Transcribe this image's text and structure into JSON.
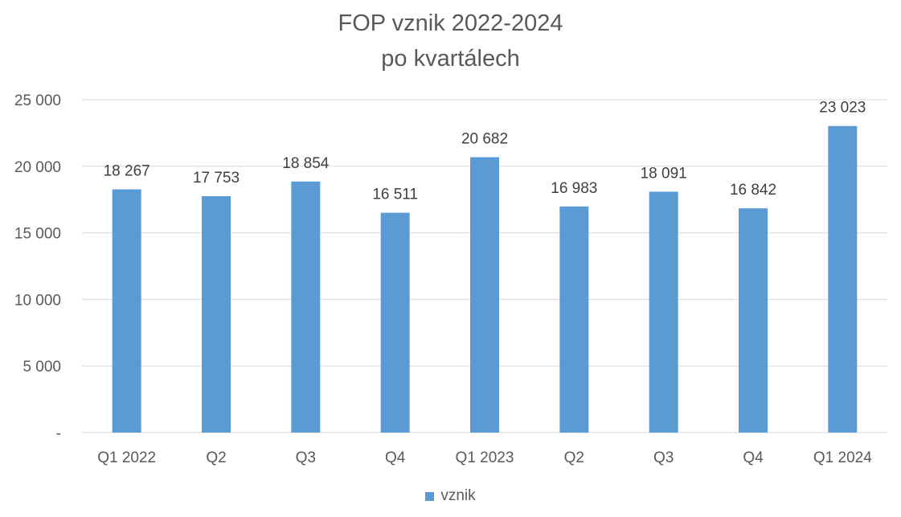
{
  "chart_data": {
    "type": "bar",
    "title": "FOP vznik 2022-2024",
    "subtitle": "po kvartálech",
    "categories": [
      "Q1 2022",
      "Q2",
      "Q3",
      "Q4",
      "Q1 2023",
      "Q2",
      "Q3",
      "Q4",
      "Q1 2024"
    ],
    "series": [
      {
        "name": "vznik",
        "values": [
          18267,
          17753,
          18854,
          16511,
          20682,
          16983,
          18091,
          16842,
          23023
        ],
        "data_labels": [
          "18 267",
          "17 753",
          "18 854",
          "16 511",
          "20 682",
          "16 983",
          "18 091",
          "16 842",
          "23 023"
        ],
        "color": "#5B9BD5"
      }
    ],
    "ylim": [
      0,
      25000
    ],
    "yticks": [
      0,
      5000,
      10000,
      15000,
      20000,
      25000
    ],
    "ytick_labels": [
      "-",
      "5 000",
      "10 000",
      "15 000",
      "20 000",
      "25 000"
    ],
    "grid": true,
    "legend": "bottom"
  }
}
